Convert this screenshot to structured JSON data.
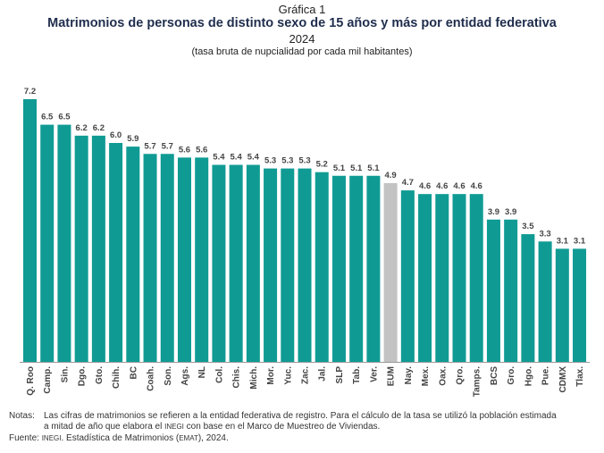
{
  "header": {
    "kicker": "Gráfica 1",
    "title": "Matrimonios de personas de distinto sexo de 15 años y más por entidad federativa",
    "year": "2024",
    "subtitle": "(tasa bruta de nupcialidad por cada mil habitantes)"
  },
  "chart_data": {
    "type": "bar",
    "title": "Matrimonios de personas de distinto sexo de 15 años y más por entidad federativa",
    "ylabel": "tasa bruta de nupcialidad por cada mil habitantes",
    "ylim": [
      0,
      7.2
    ],
    "categories": [
      "Q. Roo",
      "Camp.",
      "Sin.",
      "Dgo.",
      "Gto.",
      "Chih.",
      "BC",
      "Coah.",
      "Son.",
      "Ags.",
      "NL",
      "Col.",
      "Chis.",
      "Mich.",
      "Mor.",
      "Yuc.",
      "Zac.",
      "Jal.",
      "SLP",
      "Tab.",
      "Ver.",
      "EUM",
      "Nay.",
      "Mex.",
      "Oax.",
      "Qro.",
      "Tamps.",
      "BCS",
      "Gro.",
      "Hgo.",
      "Pue.",
      "CDMX",
      "Tlax."
    ],
    "values": [
      7.2,
      6.5,
      6.5,
      6.2,
      6.2,
      6.0,
      5.9,
      5.7,
      5.7,
      5.6,
      5.6,
      5.4,
      5.4,
      5.4,
      5.3,
      5.3,
      5.3,
      5.2,
      5.1,
      5.1,
      5.1,
      4.9,
      4.7,
      4.6,
      4.6,
      4.6,
      4.6,
      3.9,
      3.9,
      3.5,
      3.3,
      3.1,
      3.1
    ],
    "value_labels": [
      "7.2",
      "6.5",
      "6.5",
      "6.2",
      "6.2",
      "6.0",
      "5.9",
      "5.7",
      "5.7",
      "5.6",
      "5.6",
      "5.4",
      "5.4",
      "5.4",
      "5.3",
      "5.3",
      "5.3",
      "5.2",
      "5.1",
      "5.1",
      "5.1",
      "4.9",
      "4.7",
      "4.6",
      "4.6",
      "4.6",
      "4.6",
      "3.9",
      "3.9",
      "3.5",
      "3.3",
      "3.1",
      "3.1"
    ],
    "highlight": "EUM",
    "colors": {
      "bar": "#0f9b94",
      "highlight": "#c3c3c3"
    },
    "grid": false
  },
  "notes": {
    "notas_label": "Notas:",
    "notas_line1": "Las cifras de matrimonios se refieren a la entidad federativa de registro. Para el cálculo de la tasa se utilizó la población estimada",
    "notas_line2_a": "a mitad de año que elabora el ",
    "notas_inegi": "INEGI",
    "notas_line2_b": " con base en el Marco de Muestreo de Viviendas.",
    "fuente_label": "Fuente: ",
    "fuente_inegi": "INEGI",
    "fuente_text_a": ". Estadística de Matrimonios (",
    "fuente_emat": "EMAT",
    "fuente_text_b": "), 2024."
  }
}
